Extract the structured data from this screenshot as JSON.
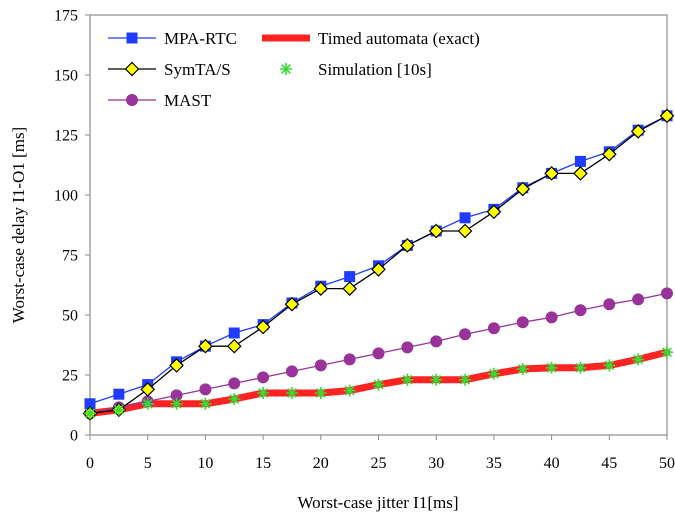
{
  "chart_data": {
    "type": "line",
    "title": "",
    "xlabel": "Worst-case jitter I1[ms]",
    "ylabel": "Worst-case delay I1-O1 [ms]",
    "xlim": [
      0,
      50
    ],
    "ylim": [
      0,
      175
    ],
    "xticks": [
      0,
      5,
      10,
      15,
      20,
      25,
      30,
      35,
      40,
      45,
      50
    ],
    "yticks": [
      0,
      25,
      50,
      75,
      100,
      125,
      150,
      175
    ],
    "grid": false,
    "legend_position": "top-left",
    "series": [
      {
        "name": "MPA-RTC",
        "color": "#1f3cff",
        "marker": "square",
        "x": [
          0,
          2.5,
          5,
          7.5,
          10,
          12.5,
          15,
          17.5,
          20,
          22.5,
          25,
          27.5,
          30,
          32.5,
          35,
          37.5,
          40,
          42.5,
          45,
          47.5,
          50
        ],
        "values": [
          13,
          17,
          21,
          30.5,
          37,
          42.5,
          46,
          55,
          62,
          66,
          70.5,
          79,
          85,
          90.5,
          94,
          103,
          109,
          114,
          118,
          127,
          133
        ]
      },
      {
        "name": "SymTA/S",
        "color": "#000000",
        "marker": "diamond",
        "x": [
          0,
          2.5,
          5,
          7.5,
          10,
          12.5,
          15,
          17.5,
          20,
          22.5,
          25,
          27.5,
          30,
          32.5,
          35,
          37.5,
          40,
          42.5,
          45,
          47.5,
          50
        ],
        "values": [
          9,
          10.5,
          19,
          29,
          37,
          37,
          45,
          54.5,
          61,
          61,
          69,
          79,
          85,
          85,
          93,
          102.5,
          109,
          109,
          117,
          126.5,
          133
        ]
      },
      {
        "name": "MAST",
        "color": "#993399",
        "marker": "circle",
        "x": [
          0,
          2.5,
          5,
          7.5,
          10,
          12.5,
          15,
          17.5,
          20,
          22.5,
          25,
          27.5,
          30,
          32.5,
          35,
          37.5,
          40,
          42.5,
          45,
          47.5,
          50
        ],
        "values": [
          9,
          11.5,
          14,
          16.5,
          19,
          21.5,
          24,
          26.5,
          29,
          31.5,
          34,
          36.5,
          39,
          42,
          44.5,
          47,
          49,
          52,
          54.5,
          56.5,
          59
        ]
      },
      {
        "name": "Timed automata (exact)",
        "color": "#ff2222",
        "marker": "none",
        "x": [
          0,
          2.5,
          5,
          7.5,
          10,
          12.5,
          15,
          17.5,
          20,
          22.5,
          25,
          27.5,
          30,
          32.5,
          35,
          37.5,
          40,
          42.5,
          45,
          47.5,
          50
        ],
        "values": [
          9,
          10.5,
          13,
          13,
          13,
          15,
          17.5,
          17.5,
          17.5,
          18.5,
          21,
          23,
          23,
          23,
          25.5,
          27.5,
          28,
          28,
          29,
          31.5,
          34.5
        ]
      },
      {
        "name": "Simulation [10s]",
        "color": "#33dd33",
        "marker": "asterisk",
        "x": [
          0,
          2.5,
          5,
          7.5,
          10,
          12.5,
          15,
          17.5,
          20,
          22.5,
          25,
          27.5,
          30,
          32.5,
          35,
          37.5,
          40,
          42.5,
          45,
          47.5,
          50
        ],
        "values": [
          9,
          10.5,
          13,
          13,
          13,
          15,
          17.5,
          17.5,
          17.5,
          18.5,
          21,
          23,
          23,
          23,
          25.5,
          27.5,
          28,
          28,
          29,
          31.5,
          34.5
        ]
      }
    ]
  }
}
